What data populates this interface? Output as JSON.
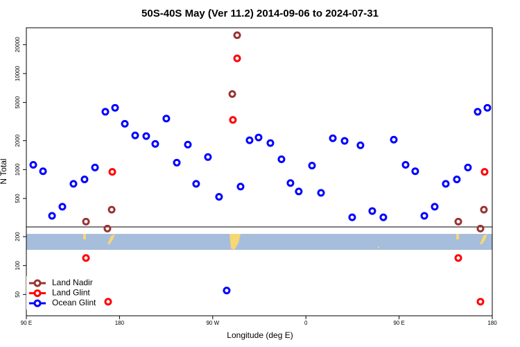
{
  "chart_data": {
    "type": "scatter",
    "title": "50S-40S May (Ver 11.2)   2014-09-06 to 2024-07-31",
    "x_label": "Longitude (deg E)",
    "y_label": "N Total",
    "xlim": [
      90,
      540
    ],
    "ylim": [
      30,
      30000
    ],
    "y_scale": "log",
    "legend": "lower left",
    "xticks": [
      {
        "value": 90,
        "label": "90 E"
      },
      180,
      {
        "value": 270,
        "label": "90 W"
      },
      {
        "value": 360,
        "label": "0"
      },
      {
        "value": 450,
        "label": "90 E"
      },
      {
        "value": 540,
        "label": "180"
      }
    ],
    "yticks": [
      50,
      100,
      200,
      500,
      1000,
      2000,
      5000,
      10000,
      20000
    ],
    "series": [
      {
        "name": "Land Nadir",
        "color": "#993333",
        "x": [
          147.6,
          172.4,
          168.3,
          288.9,
          293.6,
          507.2,
          531.9,
          528.6
        ],
        "values": [
          287,
          382,
          243,
          6120,
          25100,
          287,
          382,
          243
        ]
      },
      {
        "name": "Land Glint",
        "color": "#ff0000",
        "x": [
          147.6,
          173.0,
          169.0,
          289.5,
          293.6,
          507.2,
          532.6,
          528.6
        ],
        "values": [
          120,
          947,
          42,
          3290,
          14400,
          120,
          947,
          42
        ]
      },
      {
        "name": "Ocean Glint",
        "color": "#0000ff",
        "x": [
          96.7,
          106.1,
          114.8,
          124.8,
          135.5,
          146.2,
          156.3,
          166.3,
          175.7,
          185.1,
          195.1,
          205.8,
          214.5,
          225.2,
          235.3,
          246.0,
          254.0,
          265.4,
          276.1,
          283.5,
          296.9,
          305.6,
          314.3,
          325.7,
          336.4,
          345.1,
          353.1,
          365.9,
          374.6,
          386.0,
          397.4,
          404.7,
          412.7,
          424.1,
          434.8,
          444.9,
          456.3,
          465.6,
          474.4,
          484.4,
          495.1,
          505.8,
          516.5,
          525.9,
          535.3
        ],
        "values": [
          1120,
          960,
          330,
          410,
          710,
          790,
          1050,
          4000,
          4400,
          3000,
          2270,
          2230,
          1850,
          3400,
          1180,
          1820,
          710,
          1350,
          520,
          55,
          665,
          2020,
          2160,
          1890,
          1280,
          724,
          592,
          1100,
          572,
          2120,
          1990,
          318,
          1790,
          370,
          318,
          2050,
          1120,
          960,
          330,
          410,
          710,
          790,
          1050,
          4000,
          4400
        ]
      }
    ]
  }
}
